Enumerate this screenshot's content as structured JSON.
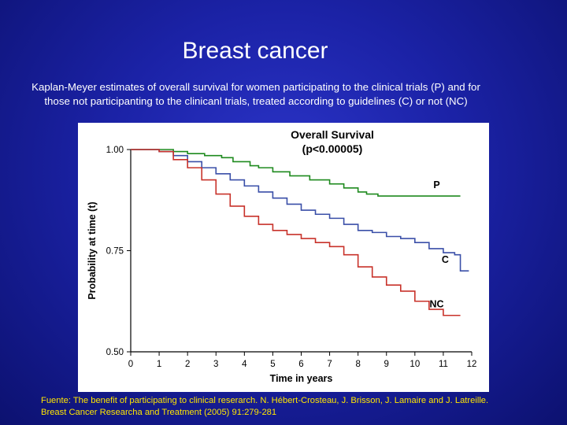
{
  "slide": {
    "title": "Breast cancer",
    "subtitle_line1": "Kaplan-Meyer estimates of overall survival for women participating to the clinical trials (P) and for",
    "subtitle_line2": "those not participanting to the clinicanl trials, treated according to guidelines (C) or not (NC)",
    "footnote_line1": "Fuente: The benefit of participating to clinical reserarch. N. Hébert-Crosteau, J. Brisson, J. Lamaire and J. Latreille.",
    "footnote_line2": "Breast Cancer Researcha and Treatment (2005) 91:279-281"
  },
  "chart_data": {
    "type": "line",
    "title": "Overall Survival",
    "subtitle": "(p<0.00005)",
    "xlabel": "Time in years",
    "ylabel": "Probability at time (t)",
    "xlim": [
      0,
      12
    ],
    "ylim": [
      0.5,
      1.0
    ],
    "x_ticks": [
      0,
      1,
      2,
      3,
      4,
      5,
      6,
      7,
      8,
      9,
      10,
      11,
      12
    ],
    "y_ticks": [
      0.5,
      0.75,
      1.0
    ],
    "y_tick_labels": [
      "0.50",
      "0.75",
      "1.00"
    ],
    "grid": false,
    "step": true,
    "series": [
      {
        "name": "P",
        "color": "#1e8a1e",
        "x": [
          0,
          1,
          1.5,
          2.0,
          2.6,
          3.2,
          3.6,
          4.2,
          4.5,
          5.0,
          5.6,
          6.3,
          7.0,
          7.5,
          8.0,
          8.3,
          8.7,
          11.6
        ],
        "y": [
          1.0,
          1.0,
          0.995,
          0.99,
          0.985,
          0.98,
          0.97,
          0.96,
          0.955,
          0.945,
          0.935,
          0.925,
          0.915,
          0.905,
          0.895,
          0.89,
          0.885,
          0.885
        ]
      },
      {
        "name": "C",
        "color": "#3a4fa8",
        "x": [
          0,
          0.5,
          1.0,
          1.5,
          2.0,
          2.5,
          3.0,
          3.5,
          4.0,
          4.5,
          5.0,
          5.5,
          6.0,
          6.5,
          7.0,
          7.5,
          8.0,
          8.5,
          9.0,
          9.5,
          10.0,
          10.5,
          11.0,
          11.4,
          11.6,
          11.9
        ],
        "y": [
          1.0,
          1.0,
          0.995,
          0.985,
          0.97,
          0.955,
          0.94,
          0.925,
          0.91,
          0.895,
          0.88,
          0.865,
          0.85,
          0.84,
          0.83,
          0.815,
          0.8,
          0.795,
          0.785,
          0.78,
          0.77,
          0.755,
          0.745,
          0.74,
          0.7,
          0.7
        ]
      },
      {
        "name": "NC",
        "color": "#c8322a",
        "x": [
          0,
          0.5,
          1.0,
          1.5,
          2.0,
          2.5,
          3.0,
          3.5,
          4.0,
          4.5,
          5.0,
          5.5,
          6.0,
          6.5,
          7.0,
          7.5,
          8.0,
          8.5,
          9.0,
          9.5,
          10.0,
          10.5,
          11.0,
          11.6
        ],
        "y": [
          1.0,
          1.0,
          0.995,
          0.975,
          0.955,
          0.925,
          0.89,
          0.86,
          0.835,
          0.815,
          0.8,
          0.79,
          0.78,
          0.77,
          0.76,
          0.74,
          0.71,
          0.685,
          0.665,
          0.65,
          0.625,
          0.605,
          0.59,
          0.59
        ]
      }
    ]
  }
}
